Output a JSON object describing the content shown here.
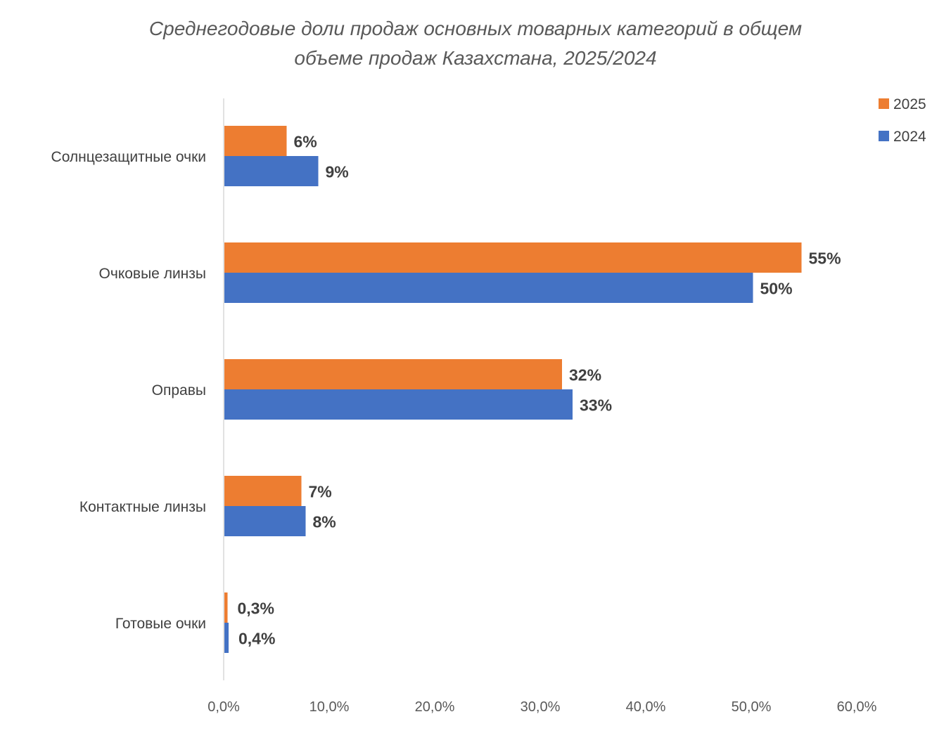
{
  "chart_data": {
    "type": "bar",
    "orientation": "horizontal",
    "title": "Среднегодовые доли продаж основных товарных категорий в общем объеме продаж Казахстана, 2025/2024",
    "title_lines": [
      "Среднегодовые доли продаж основных товарных категорий в общем",
      "объеме продаж Казахстана, 2025/2024"
    ],
    "categories": [
      "Солнцезащитные очки",
      "Очковые линзы",
      "Оправы",
      "Контактные линзы",
      "Готовые очки"
    ],
    "series": [
      {
        "name": "2025",
        "color": "#ED7D31",
        "values": [
          5.9,
          54.7,
          32.0,
          7.3,
          0.3
        ],
        "labels": [
          "6%",
          "55%",
          "32%",
          "7%",
          "0,3%"
        ]
      },
      {
        "name": "2024",
        "color": "#4472C4",
        "values": [
          8.9,
          50.1,
          33.0,
          7.7,
          0.4
        ],
        "labels": [
          "9%",
          "50%",
          "33%",
          "8%",
          "0,4%"
        ]
      }
    ],
    "xlim": [
      0,
      60
    ],
    "xticks": [
      "0,0%",
      "10,0%",
      "20,0%",
      "30,0%",
      "40,0%",
      "50,0%",
      "60,0%"
    ],
    "legend": {
      "position": "top-right"
    },
    "grid": false
  }
}
